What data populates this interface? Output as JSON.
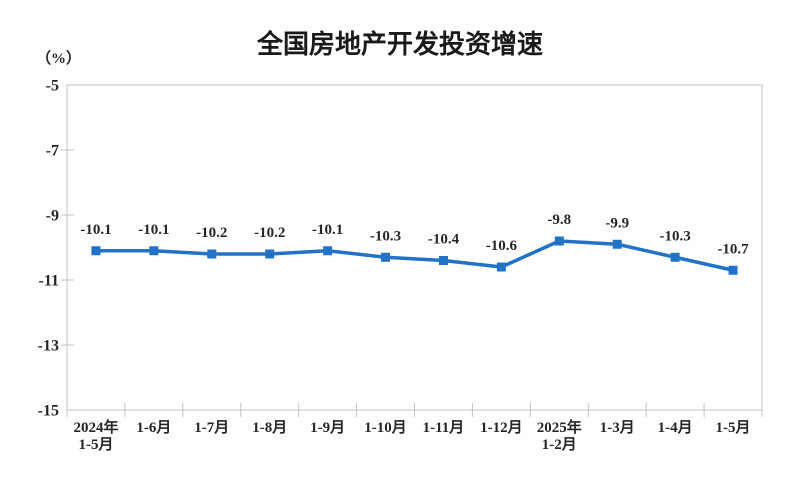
{
  "chart_data": {
    "type": "line",
    "title": "全国房地产开发投资增速",
    "unit_label": "（%）",
    "categories": [
      [
        "2024年",
        "1-5月"
      ],
      [
        "1-6月"
      ],
      [
        "1-7月"
      ],
      [
        "1-8月"
      ],
      [
        "1-9月"
      ],
      [
        "1-10月"
      ],
      [
        "1-11月"
      ],
      [
        "1-12月"
      ],
      [
        "2025年",
        "1-2月"
      ],
      [
        "1-3月"
      ],
      [
        "1-4月"
      ],
      [
        "1-5月"
      ]
    ],
    "values": [
      -10.1,
      -10.1,
      -10.2,
      -10.2,
      -10.1,
      -10.3,
      -10.4,
      -10.6,
      -9.8,
      -9.9,
      -10.3,
      -10.7
    ],
    "y_ticks": [
      -5,
      -7,
      -9,
      -11,
      -13,
      -15
    ],
    "ylim": [
      -15,
      -5
    ],
    "grid": false,
    "legend": "none",
    "marker_shape": "square",
    "colors": {
      "line": "#2272C6",
      "marker": "#2272C6",
      "axis": "#c3c3c3",
      "tick_label": "#262626",
      "data_label": "#262626",
      "title": "#1a1a1a"
    }
  }
}
